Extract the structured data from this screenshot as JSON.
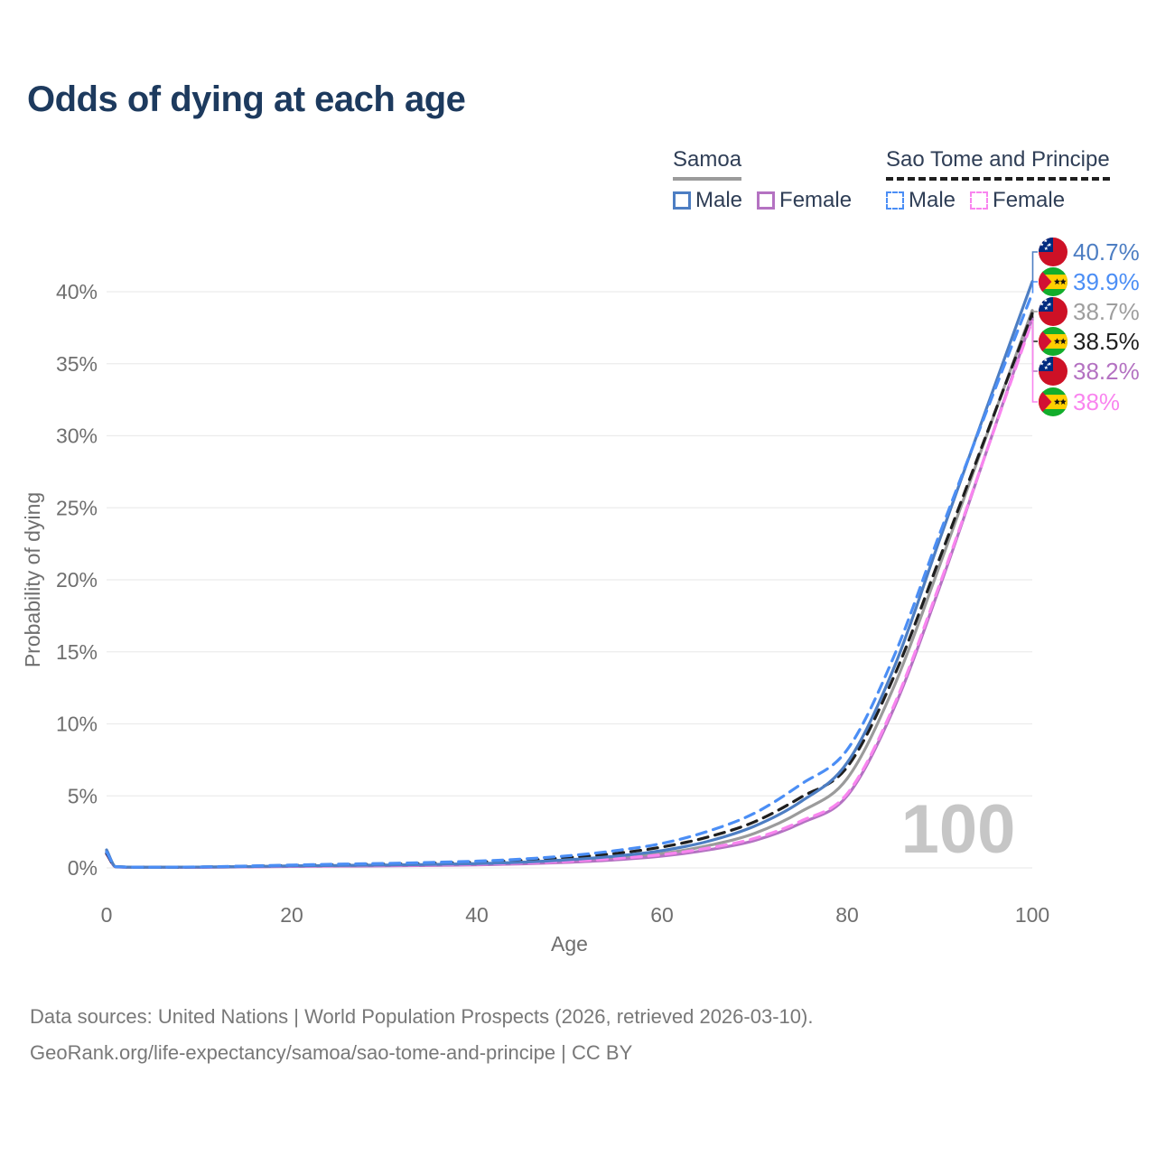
{
  "title": "Odds of dying at each age",
  "watermark": "100",
  "legend": {
    "groups": [
      {
        "name": "Samoa",
        "line_style": "solid",
        "underline_color": "#9b9b9b",
        "items": [
          {
            "label": "Male",
            "color": "#4d7ec3",
            "line_style": "solid"
          },
          {
            "label": "Female",
            "color": "#b472c2",
            "line_style": "solid"
          }
        ]
      },
      {
        "name": "Sao Tome and Principe",
        "line_style": "dashed",
        "underline_color": "#1f1f1f",
        "items": [
          {
            "label": "Male",
            "color": "#4b8ef5",
            "line_style": "dashed"
          },
          {
            "label": "Female",
            "color": "#f985ef",
            "line_style": "dashed"
          }
        ]
      }
    ]
  },
  "footer": {
    "line1": "Data sources: United Nations | World Population Prospects (2026, retrieved 2026-03-10).",
    "line2": "GeoRank.org/life-expectancy/samoa/sao-tome-and-principe | CC BY"
  },
  "chart_data": {
    "type": "line",
    "title": "Odds of dying at each age",
    "xlabel": "Age",
    "ylabel": "Probability of dying",
    "xlim": [
      0,
      100
    ],
    "ylim": [
      0,
      43
    ],
    "xticks": [
      0,
      20,
      40,
      60,
      80,
      100
    ],
    "ytick_values": [
      0,
      5,
      10,
      15,
      20,
      25,
      30,
      35,
      40
    ],
    "ytick_labels": [
      "0%",
      "5%",
      "10%",
      "15%",
      "20%",
      "25%",
      "30%",
      "35%",
      "40%"
    ],
    "grid": "horizontal",
    "legend_position": "top-right",
    "x": [
      0,
      1,
      5,
      10,
      15,
      20,
      25,
      30,
      35,
      40,
      45,
      50,
      55,
      60,
      65,
      70,
      75,
      80,
      85,
      90,
      95,
      100
    ],
    "series": [
      {
        "name": "Samoa",
        "country": "Samoa",
        "sex": "All",
        "flag": "ws",
        "color": "#9b9b9b",
        "label_color": "#9e9e9e",
        "line_style": "solid",
        "end_label": "38.7%",
        "values": [
          1.15,
          0.075,
          0.04,
          0.05,
          0.08,
          0.12,
          0.15,
          0.17,
          0.2,
          0.26,
          0.35,
          0.48,
          0.7,
          1.0,
          1.55,
          2.4,
          3.9,
          6.2,
          12.5,
          21.0,
          29.9,
          38.7
        ]
      },
      {
        "name": "Samoa Female",
        "country": "Samoa",
        "sex": "Female",
        "flag": "ws",
        "color": "#b472c2",
        "label_color": "#b472c2",
        "line_style": "solid",
        "end_label": "38.2%",
        "values": [
          1.05,
          0.065,
          0.035,
          0.04,
          0.07,
          0.1,
          0.12,
          0.14,
          0.17,
          0.21,
          0.28,
          0.39,
          0.56,
          0.82,
          1.25,
          1.9,
          3.1,
          5.0,
          11.0,
          19.5,
          28.8,
          38.2
        ]
      },
      {
        "name": "Sao Tome and Principe Female",
        "country": "Sao Tome and Principe",
        "sex": "Female",
        "flag": "st",
        "color": "#f985ef",
        "label_color": "#f985ef",
        "line_style": "dashed",
        "end_label": "38%",
        "values": [
          0.95,
          0.07,
          0.04,
          0.05,
          0.08,
          0.12,
          0.15,
          0.18,
          0.21,
          0.26,
          0.34,
          0.46,
          0.65,
          0.92,
          1.38,
          2.05,
          3.25,
          5.15,
          11.2,
          19.7,
          28.8,
          38.0
        ]
      },
      {
        "name": "Sao Tome and Principe",
        "country": "Sao Tome and Principe",
        "sex": "All",
        "flag": "st",
        "color": "#1f1f1f",
        "label_color": "#1f1f1f",
        "line_style": "dashed",
        "end_label": "38.5%",
        "values": [
          1.0,
          0.08,
          0.045,
          0.06,
          0.11,
          0.17,
          0.22,
          0.26,
          0.32,
          0.4,
          0.52,
          0.72,
          1.0,
          1.45,
          2.15,
          3.2,
          4.9,
          7.0,
          13.2,
          21.5,
          30.0,
          38.5
        ]
      },
      {
        "name": "Samoa Male",
        "country": "Samoa",
        "sex": "Male",
        "flag": "ws",
        "color": "#4d7ec3",
        "label_color": "#4d7ec3",
        "line_style": "solid",
        "end_label": "40.7%",
        "values": [
          1.25,
          0.08,
          0.045,
          0.06,
          0.09,
          0.14,
          0.17,
          0.2,
          0.24,
          0.3,
          0.4,
          0.57,
          0.82,
          1.2,
          1.85,
          2.9,
          4.6,
          7.3,
          13.8,
          22.8,
          31.8,
          40.7
        ]
      },
      {
        "name": "Sao Tome and Principe Male",
        "country": "Sao Tome and Principe",
        "sex": "Male",
        "flag": "st",
        "color": "#4b8ef5",
        "label_color": "#4b8ef5",
        "line_style": "dashed",
        "end_label": "39.9%",
        "values": [
          1.1,
          0.09,
          0.05,
          0.07,
          0.13,
          0.2,
          0.26,
          0.31,
          0.38,
          0.47,
          0.62,
          0.85,
          1.2,
          1.7,
          2.55,
          3.8,
          5.8,
          8.2,
          14.6,
          23.2,
          31.6,
          39.9
        ]
      }
    ],
    "flag_colors": {
      "samoa_red": "#ce1126",
      "samoa_blue": "#002b7f",
      "stp_green": "#12ad2b",
      "stp_yellow": "#ffce00",
      "stp_red": "#d21034"
    }
  }
}
